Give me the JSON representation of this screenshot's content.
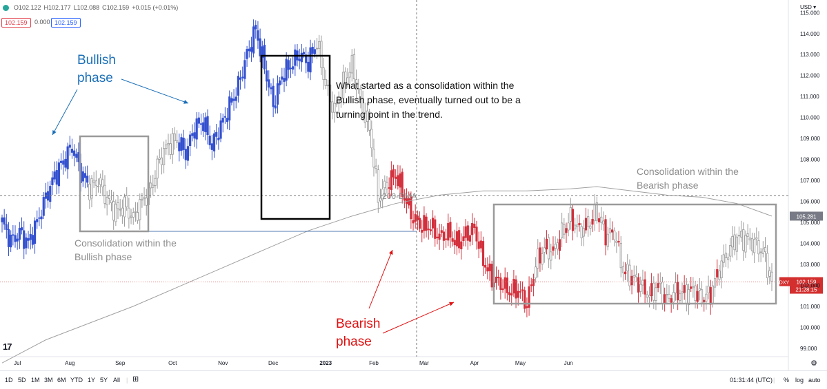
{
  "legend": {
    "open": "O102.122",
    "high": "H102.177",
    "low": "L102.088",
    "close": "C102.159",
    "change": "+0.015 (+0.01%)"
  },
  "pills": {
    "sell": "102.159",
    "spread": "0.000",
    "buy": "102.159"
  },
  "currency": "USD",
  "annotations": {
    "bullish": [
      "Bullish",
      "phase"
    ],
    "bearish": [
      "Bearish",
      "phase"
    ],
    "consol_bull": [
      "Consolidation within the",
      "Bullish phase"
    ],
    "consol_bear": [
      "Consolidation within the",
      "Bearish phase"
    ],
    "turning": [
      "What started as a consolidation within the",
      "Bullish phase, eventually turned out to be a",
      "turning point in the trend."
    ],
    "dma": "200-DMA"
  },
  "price_tags": {
    "dma_value": "105.281",
    "symbol": "DXY",
    "last": "102.159",
    "countdown": "21:28:15"
  },
  "bottom": {
    "timeframes": [
      "1D",
      "5D",
      "1M",
      "3M",
      "6M",
      "YTD",
      "1Y",
      "5Y",
      "All"
    ],
    "clock": "01:31:44 (UTC)",
    "pct": "%",
    "log": "log",
    "auto": "auto"
  },
  "colors": {
    "up": "#3451cf",
    "down": "#d2303c",
    "neutral": "#9a9a9a",
    "dma": "#9e9e9e",
    "bull_text": "#1a6fb8",
    "bear_text": "#e01010",
    "grey_text": "#8c8c8c"
  },
  "chart_data": {
    "type": "candlestick",
    "ylim": [
      98.6,
      115.6
    ],
    "y_ticks": [
      "115.000",
      "114.000",
      "113.000",
      "112.000",
      "111.000",
      "110.000",
      "109.000",
      "108.000",
      "107.000",
      "106.000",
      "105.000",
      "104.000",
      "103.000",
      "102.000",
      "101.000",
      "100.000",
      "99.000"
    ],
    "x_ticks": [
      "Jul",
      "Aug",
      "Sep",
      "Oct",
      "Nov",
      "Dec",
      "2023",
      "Feb",
      "Mar",
      "Apr",
      "May",
      "Jun"
    ],
    "anchors": [
      [
        0,
        105.0
      ],
      [
        4,
        104.1
      ],
      [
        8,
        104.5
      ],
      [
        12,
        104.0
      ],
      [
        16,
        105.0
      ],
      [
        20,
        106.2
      ],
      [
        24,
        107.2
      ],
      [
        28,
        107.9
      ],
      [
        32,
        108.6
      ],
      [
        36,
        107.4
      ],
      [
        40,
        106.6
      ],
      [
        44,
        107.0
      ],
      [
        48,
        106.1
      ],
      [
        52,
        105.5
      ],
      [
        56,
        105.8
      ],
      [
        60,
        105.2
      ],
      [
        64,
        106.0
      ],
      [
        68,
        106.6
      ],
      [
        72,
        108.0
      ],
      [
        76,
        108.7
      ],
      [
        80,
        108.9
      ],
      [
        84,
        108.3
      ],
      [
        88,
        109.5
      ],
      [
        92,
        109.8
      ],
      [
        96,
        108.6
      ],
      [
        100,
        109.6
      ],
      [
        104,
        110.5
      ],
      [
        108,
        111.5
      ],
      [
        112,
        113.0
      ],
      [
        116,
        114.2
      ],
      [
        120,
        112.4
      ],
      [
        124,
        110.6
      ],
      [
        128,
        112.0
      ],
      [
        132,
        112.5
      ],
      [
        136,
        113.0
      ],
      [
        140,
        112.6
      ],
      [
        144,
        113.6
      ],
      [
        148,
        111.5
      ],
      [
        152,
        110.3
      ],
      [
        156,
        111.6
      ],
      [
        160,
        112.5
      ],
      [
        164,
        110.7
      ],
      [
        168,
        109.5
      ],
      [
        172,
        106.2
      ],
      [
        176,
        106.8
      ],
      [
        180,
        107.3
      ],
      [
        184,
        106.2
      ],
      [
        188,
        105.2
      ],
      [
        192,
        104.8
      ],
      [
        196,
        104.8
      ],
      [
        200,
        104.3
      ],
      [
        204,
        104.5
      ],
      [
        208,
        104.0
      ],
      [
        212,
        104.4
      ],
      [
        216,
        104.7
      ],
      [
        220,
        103.2
      ],
      [
        224,
        102.3
      ],
      [
        228,
        102.1
      ],
      [
        232,
        101.7
      ],
      [
        236,
        101.8
      ],
      [
        240,
        101.1
      ],
      [
        244,
        103.0
      ],
      [
        248,
        103.8
      ],
      [
        252,
        103.6
      ],
      [
        256,
        104.5
      ],
      [
        260,
        105.2
      ],
      [
        264,
        104.6
      ],
      [
        268,
        104.9
      ],
      [
        272,
        105.5
      ],
      [
        276,
        104.4
      ],
      [
        280,
        104.5
      ],
      [
        284,
        102.7
      ],
      [
        288,
        102.4
      ],
      [
        292,
        102.0
      ],
      [
        296,
        101.5
      ],
      [
        300,
        102.0
      ],
      [
        304,
        101.3
      ],
      [
        308,
        101.7
      ],
      [
        312,
        101.6
      ],
      [
        316,
        101.8
      ],
      [
        320,
        101.4
      ],
      [
        324,
        101.6
      ],
      [
        328,
        102.8
      ],
      [
        332,
        103.6
      ],
      [
        336,
        104.3
      ],
      [
        340,
        104.2
      ],
      [
        344,
        104.0
      ],
      [
        348,
        103.6
      ],
      [
        352,
        102.2
      ]
    ],
    "dma": [
      [
        0,
        98.3
      ],
      [
        20,
        99.4
      ],
      [
        40,
        100.2
      ],
      [
        60,
        101.0
      ],
      [
        80,
        101.9
      ],
      [
        100,
        102.8
      ],
      [
        120,
        103.7
      ],
      [
        140,
        104.6
      ],
      [
        160,
        105.3
      ],
      [
        180,
        105.9
      ],
      [
        200,
        106.3
      ],
      [
        220,
        106.5
      ],
      [
        240,
        106.5
      ],
      [
        260,
        106.6
      ],
      [
        272,
        106.7
      ],
      [
        288,
        106.5
      ],
      [
        304,
        106.3
      ],
      [
        320,
        106.2
      ],
      [
        336,
        105.9
      ],
      [
        352,
        105.3
      ]
    ]
  }
}
